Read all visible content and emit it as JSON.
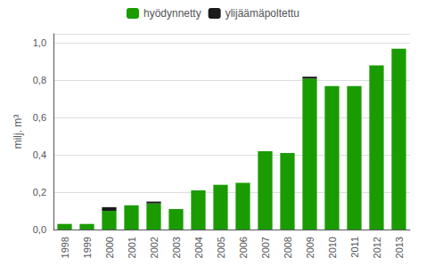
{
  "chart_data": {
    "type": "bar",
    "stacked": true,
    "categories": [
      "1998",
      "1999",
      "2000",
      "2001",
      "2002",
      "2003",
      "2004",
      "2005",
      "2006",
      "2007",
      "2008",
      "2009",
      "2010",
      "2011",
      "2012",
      "2013"
    ],
    "series": [
      {
        "name": "hyödynnetty",
        "color": "#1a9c00",
        "values": [
          0.03,
          0.03,
          0.1,
          0.13,
          0.14,
          0.11,
          0.21,
          0.24,
          0.25,
          0.42,
          0.41,
          0.81,
          0.77,
          0.77,
          0.88,
          0.97
        ]
      },
      {
        "name": "ylijäämäpoltettu",
        "color": "#1a1a1a",
        "values": [
          0.0,
          0.0,
          0.02,
          0.0,
          0.01,
          0.0,
          0.0,
          0.0,
          0.0,
          0.0,
          0.0,
          0.01,
          0.0,
          0.0,
          0.0,
          0.0
        ]
      }
    ],
    "ylabel": "milj. m³",
    "ylim": [
      0,
      1.05
    ],
    "yticks": [
      {
        "value": 0.0,
        "label": "0,0"
      },
      {
        "value": 0.2,
        "label": "0,2"
      },
      {
        "value": 0.4,
        "label": "0,4"
      },
      {
        "value": 0.6,
        "label": "0,6"
      },
      {
        "value": 0.8,
        "label": "0,8"
      },
      {
        "value": 1.0,
        "label": "1,0"
      }
    ],
    "grid": true,
    "legend": "top"
  }
}
